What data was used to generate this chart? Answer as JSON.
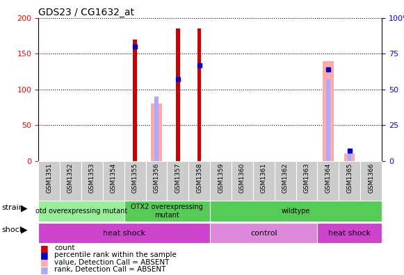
{
  "title": "GDS23 / CG1632_at",
  "samples": [
    "GSM1351",
    "GSM1352",
    "GSM1353",
    "GSM1354",
    "GSM1355",
    "GSM1356",
    "GSM1357",
    "GSM1358",
    "GSM1359",
    "GSM1360",
    "GSM1361",
    "GSM1362",
    "GSM1363",
    "GSM1364",
    "GSM1365",
    "GSM1366"
  ],
  "count_values": [
    0,
    0,
    0,
    0,
    170,
    0,
    185,
    185,
    0,
    0,
    0,
    0,
    0,
    0,
    0,
    0
  ],
  "percentile_values": [
    0,
    0,
    0,
    0,
    80,
    0,
    57,
    67,
    0,
    0,
    0,
    0,
    0,
    64,
    7,
    0
  ],
  "absent_value_values": [
    0,
    0,
    0,
    0,
    0,
    80,
    0,
    0,
    0,
    0,
    0,
    0,
    0,
    140,
    10,
    0
  ],
  "absent_rank_values": [
    0,
    0,
    0,
    0,
    0,
    45,
    0,
    0,
    0,
    0,
    0,
    0,
    0,
    57,
    7,
    0
  ],
  "ylim_left": [
    0,
    200
  ],
  "ylim_right": [
    0,
    100
  ],
  "left_ticks": [
    0,
    50,
    100,
    150,
    200
  ],
  "right_ticks": [
    0,
    25,
    50,
    75,
    100
  ],
  "right_tick_labels": [
    "0",
    "25",
    "50",
    "75",
    "100%"
  ],
  "color_count": "#cc0000",
  "color_percentile": "#0000cc",
  "color_absent_value": "#ffaaaa",
  "color_absent_rank": "#aaaaff",
  "strain_groups": [
    {
      "label": "otd overexpressing mutant",
      "start": 0,
      "end": 4,
      "color": "#99ee99"
    },
    {
      "label": "OTX2 overexpressing\nmutant",
      "start": 4,
      "end": 8,
      "color": "#55cc55"
    },
    {
      "label": "wildtype",
      "start": 8,
      "end": 16,
      "color": "#55cc55"
    }
  ],
  "shock_groups": [
    {
      "label": "heat shock",
      "start": 0,
      "end": 8,
      "color": "#cc44cc"
    },
    {
      "label": "control",
      "start": 8,
      "end": 13,
      "color": "#dd88dd"
    },
    {
      "label": "heat shock",
      "start": 13,
      "end": 16,
      "color": "#cc44cc"
    }
  ],
  "legend_items": [
    {
      "label": "count",
      "color": "#cc0000"
    },
    {
      "label": "percentile rank within the sample",
      "color": "#0000cc"
    },
    {
      "label": "value, Detection Call = ABSENT",
      "color": "#ffaaaa"
    },
    {
      "label": "rank, Detection Call = ABSENT",
      "color": "#aaaaff"
    }
  ],
  "bar_width": 0.35,
  "absent_bar_width": 0.5,
  "grid_color": "black",
  "bg_color": "#ffffff"
}
